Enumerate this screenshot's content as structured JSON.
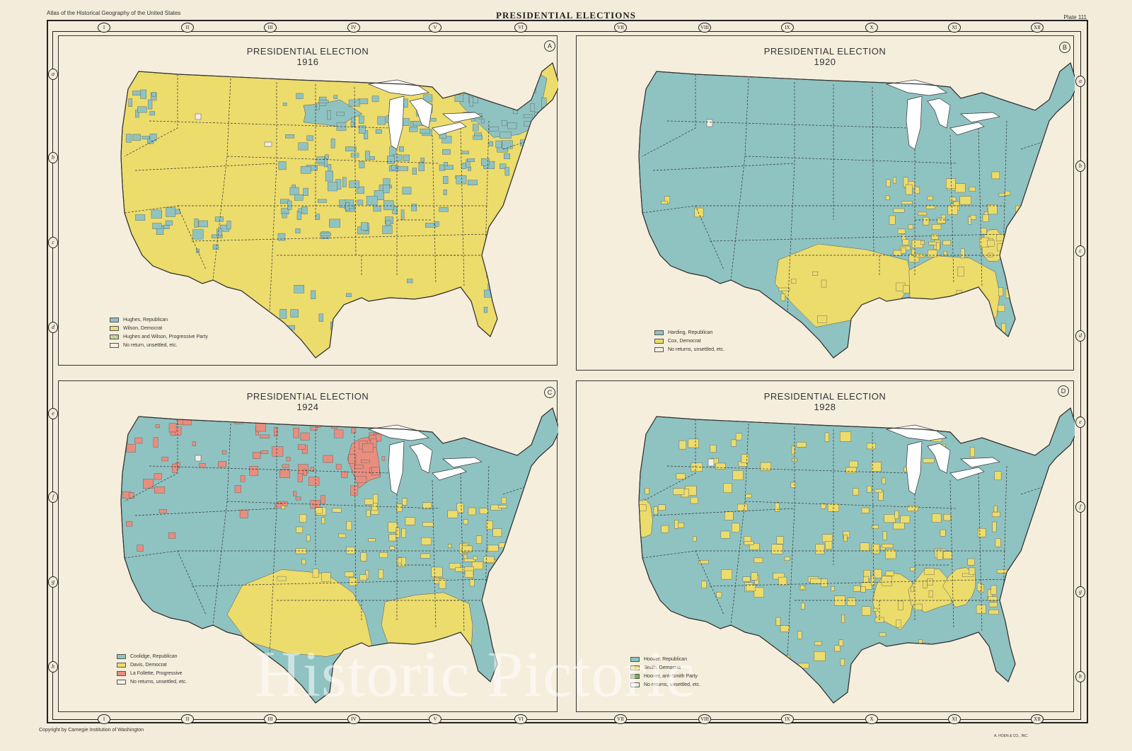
{
  "header": {
    "atlas_title": "Atlas of the Historical Geography of the United States",
    "main_title": "PRESIDENTIAL ELECTIONS",
    "plate": "Plate 111"
  },
  "footer": {
    "copyright": "Copyright by Carnegie Institution of Washington",
    "printer": "A. HOEN & CO., INC."
  },
  "grid_columns": [
    "I",
    "II",
    "III",
    "IV",
    "V",
    "VI",
    "VII",
    "VIII",
    "IX",
    "X",
    "XI",
    "XII"
  ],
  "grid_rows": [
    "a",
    "b",
    "c",
    "d",
    "e",
    "f",
    "g",
    "h"
  ],
  "colors": {
    "republican": "#8fc3c1",
    "democrat": "#ecdc6c",
    "progressive": "#e88e7f",
    "anti_smith": "#7cae5a",
    "no_returns": "#f4efe4",
    "water": "#ffffff"
  },
  "maps": [
    {
      "id": "A",
      "title": "PRESIDENTIAL ELECTION",
      "year": "1916",
      "legend": [
        {
          "label": "Hughes, Republican",
          "color": "#8fc3c1"
        },
        {
          "label": "Wilson, Democrat",
          "color": "#ecdc6c"
        },
        {
          "label": "Hughes and Wilson, Progressive Party",
          "color": "#a8cf88"
        },
        {
          "label": "No return, unsettled, etc.",
          "color": "#f4efe4"
        }
      ]
    },
    {
      "id": "B",
      "title": "PRESIDENTIAL ELECTION",
      "year": "1920",
      "legend": [
        {
          "label": "Harding, Republican",
          "color": "#8fc3c1"
        },
        {
          "label": "Cox, Democrat",
          "color": "#ecdc6c"
        },
        {
          "label": "No returns, unsettled, etc.",
          "color": "#f4efe4"
        }
      ]
    },
    {
      "id": "C",
      "title": "PRESIDENTIAL ELECTION",
      "year": "1924",
      "legend": [
        {
          "label": "Coolidge, Republican",
          "color": "#8fc3c1"
        },
        {
          "label": "Davis, Democrat",
          "color": "#ecdc6c"
        },
        {
          "label": "La Follette, Progressive",
          "color": "#e88e7f"
        },
        {
          "label": "No returns, unsettled, etc.",
          "color": "#f4efe4"
        }
      ]
    },
    {
      "id": "D",
      "title": "PRESIDENTIAL ELECTION",
      "year": "1928",
      "legend": [
        {
          "label": "Hoover, Republican",
          "color": "#8fc3c1"
        },
        {
          "label": "Smith, Democrat",
          "color": "#ecdc6c"
        },
        {
          "label": "Hoover, anti-Smith Party",
          "color": "#7cae5a"
        },
        {
          "label": "No returns, unsettled, etc.",
          "color": "#f4efe4"
        }
      ]
    }
  ],
  "watermark": "Historic Pictoric"
}
